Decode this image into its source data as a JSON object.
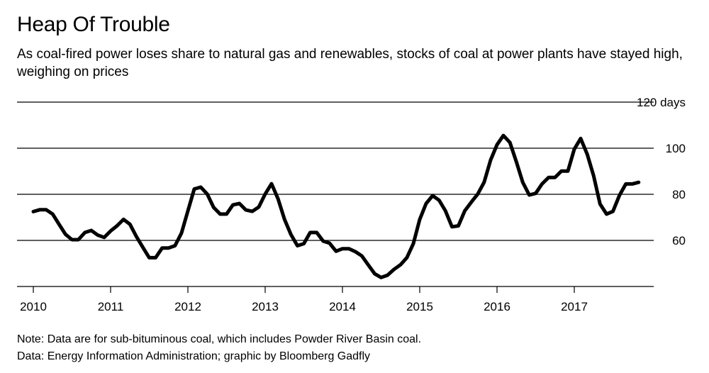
{
  "header": {
    "title": "Heap Of Trouble",
    "subtitle": "As coal-fired power loses share to natural gas and renewables, stocks of coal at power plants have stayed high, weighing on prices"
  },
  "footer": {
    "note": "Note: Data are for sub-bituminous coal, which includes Powder River Basin coal.",
    "source": "Data: Energy Information Administration; graphic by Bloomberg Gadfly"
  },
  "chart_data": {
    "type": "line",
    "title": "Heap Of Trouble",
    "xlabel": "",
    "ylabel": "",
    "ylim": [
      40,
      120
    ],
    "xlim": [
      2010,
      2018
    ],
    "y_ticks": [
      {
        "value": 120,
        "label": "120 days"
      },
      {
        "value": 100,
        "label": "100"
      },
      {
        "value": 80,
        "label": "80"
      },
      {
        "value": 60,
        "label": "60"
      }
    ],
    "x_ticks": [
      "2010",
      "2011",
      "2012",
      "2013",
      "2014",
      "2015",
      "2016",
      "2017"
    ],
    "grid": true,
    "line_color": "#000000",
    "series": [
      {
        "values": [
          [
            2010.0,
            72.5
          ],
          [
            2010.083,
            73.3
          ],
          [
            2010.167,
            73.3
          ],
          [
            2010.25,
            71.4
          ],
          [
            2010.333,
            67.0
          ],
          [
            2010.417,
            62.6
          ],
          [
            2010.5,
            60.3
          ],
          [
            2010.583,
            60.3
          ],
          [
            2010.667,
            63.4
          ],
          [
            2010.75,
            64.3
          ],
          [
            2010.833,
            62.3
          ],
          [
            2010.917,
            61.3
          ],
          [
            2011.0,
            64.1
          ],
          [
            2011.083,
            66.3
          ],
          [
            2011.167,
            69.1
          ],
          [
            2011.25,
            67.0
          ],
          [
            2011.333,
            61.7
          ],
          [
            2011.417,
            57.0
          ],
          [
            2011.5,
            52.5
          ],
          [
            2011.583,
            52.5
          ],
          [
            2011.667,
            56.7
          ],
          [
            2011.75,
            56.7
          ],
          [
            2011.833,
            57.7
          ],
          [
            2011.917,
            63.2
          ],
          [
            2012.0,
            72.8
          ],
          [
            2012.083,
            82.3
          ],
          [
            2012.167,
            83.1
          ],
          [
            2012.25,
            80.1
          ],
          [
            2012.333,
            74.3
          ],
          [
            2012.417,
            71.4
          ],
          [
            2012.5,
            71.4
          ],
          [
            2012.583,
            75.4
          ],
          [
            2012.667,
            76.0
          ],
          [
            2012.75,
            73.2
          ],
          [
            2012.833,
            72.6
          ],
          [
            2012.917,
            74.5
          ],
          [
            2013.0,
            80.1
          ],
          [
            2013.083,
            84.6
          ],
          [
            2013.167,
            78.0
          ],
          [
            2013.25,
            69.1
          ],
          [
            2013.333,
            62.6
          ],
          [
            2013.417,
            57.7
          ],
          [
            2013.5,
            58.6
          ],
          [
            2013.583,
            63.4
          ],
          [
            2013.667,
            63.4
          ],
          [
            2013.75,
            59.7
          ],
          [
            2013.833,
            58.8
          ],
          [
            2013.917,
            55.3
          ],
          [
            2014.0,
            56.4
          ],
          [
            2014.083,
            56.4
          ],
          [
            2014.167,
            55.1
          ],
          [
            2014.25,
            53.3
          ],
          [
            2014.333,
            49.4
          ],
          [
            2014.417,
            45.5
          ],
          [
            2014.5,
            43.9
          ],
          [
            2014.583,
            44.9
          ],
          [
            2014.667,
            47.4
          ],
          [
            2014.75,
            49.4
          ],
          [
            2014.833,
            52.5
          ],
          [
            2014.917,
            58.6
          ],
          [
            2015.0,
            69.1
          ],
          [
            2015.083,
            76.0
          ],
          [
            2015.167,
            79.4
          ],
          [
            2015.25,
            77.4
          ],
          [
            2015.333,
            72.8
          ],
          [
            2015.417,
            65.9
          ],
          [
            2015.5,
            66.3
          ],
          [
            2015.583,
            72.8
          ],
          [
            2015.667,
            76.6
          ],
          [
            2015.75,
            80.1
          ],
          [
            2015.833,
            85.2
          ],
          [
            2015.917,
            94.9
          ],
          [
            2016.0,
            101.5
          ],
          [
            2016.083,
            105.5
          ],
          [
            2016.167,
            102.5
          ],
          [
            2016.25,
            94.1
          ],
          [
            2016.333,
            85.2
          ],
          [
            2016.417,
            79.7
          ],
          [
            2016.5,
            80.4
          ],
          [
            2016.583,
            84.5
          ],
          [
            2016.667,
            87.3
          ],
          [
            2016.75,
            87.3
          ],
          [
            2016.833,
            90.1
          ],
          [
            2016.917,
            90.1
          ],
          [
            2017.0,
            99.6
          ],
          [
            2017.083,
            104.2
          ],
          [
            2017.167,
            97.4
          ],
          [
            2017.25,
            88.0
          ],
          [
            2017.333,
            75.8
          ],
          [
            2017.417,
            71.4
          ],
          [
            2017.5,
            72.6
          ],
          [
            2017.583,
            79.4
          ],
          [
            2017.667,
            84.5
          ],
          [
            2017.75,
            84.5
          ],
          [
            2017.833,
            85.2
          ]
        ]
      }
    ]
  }
}
